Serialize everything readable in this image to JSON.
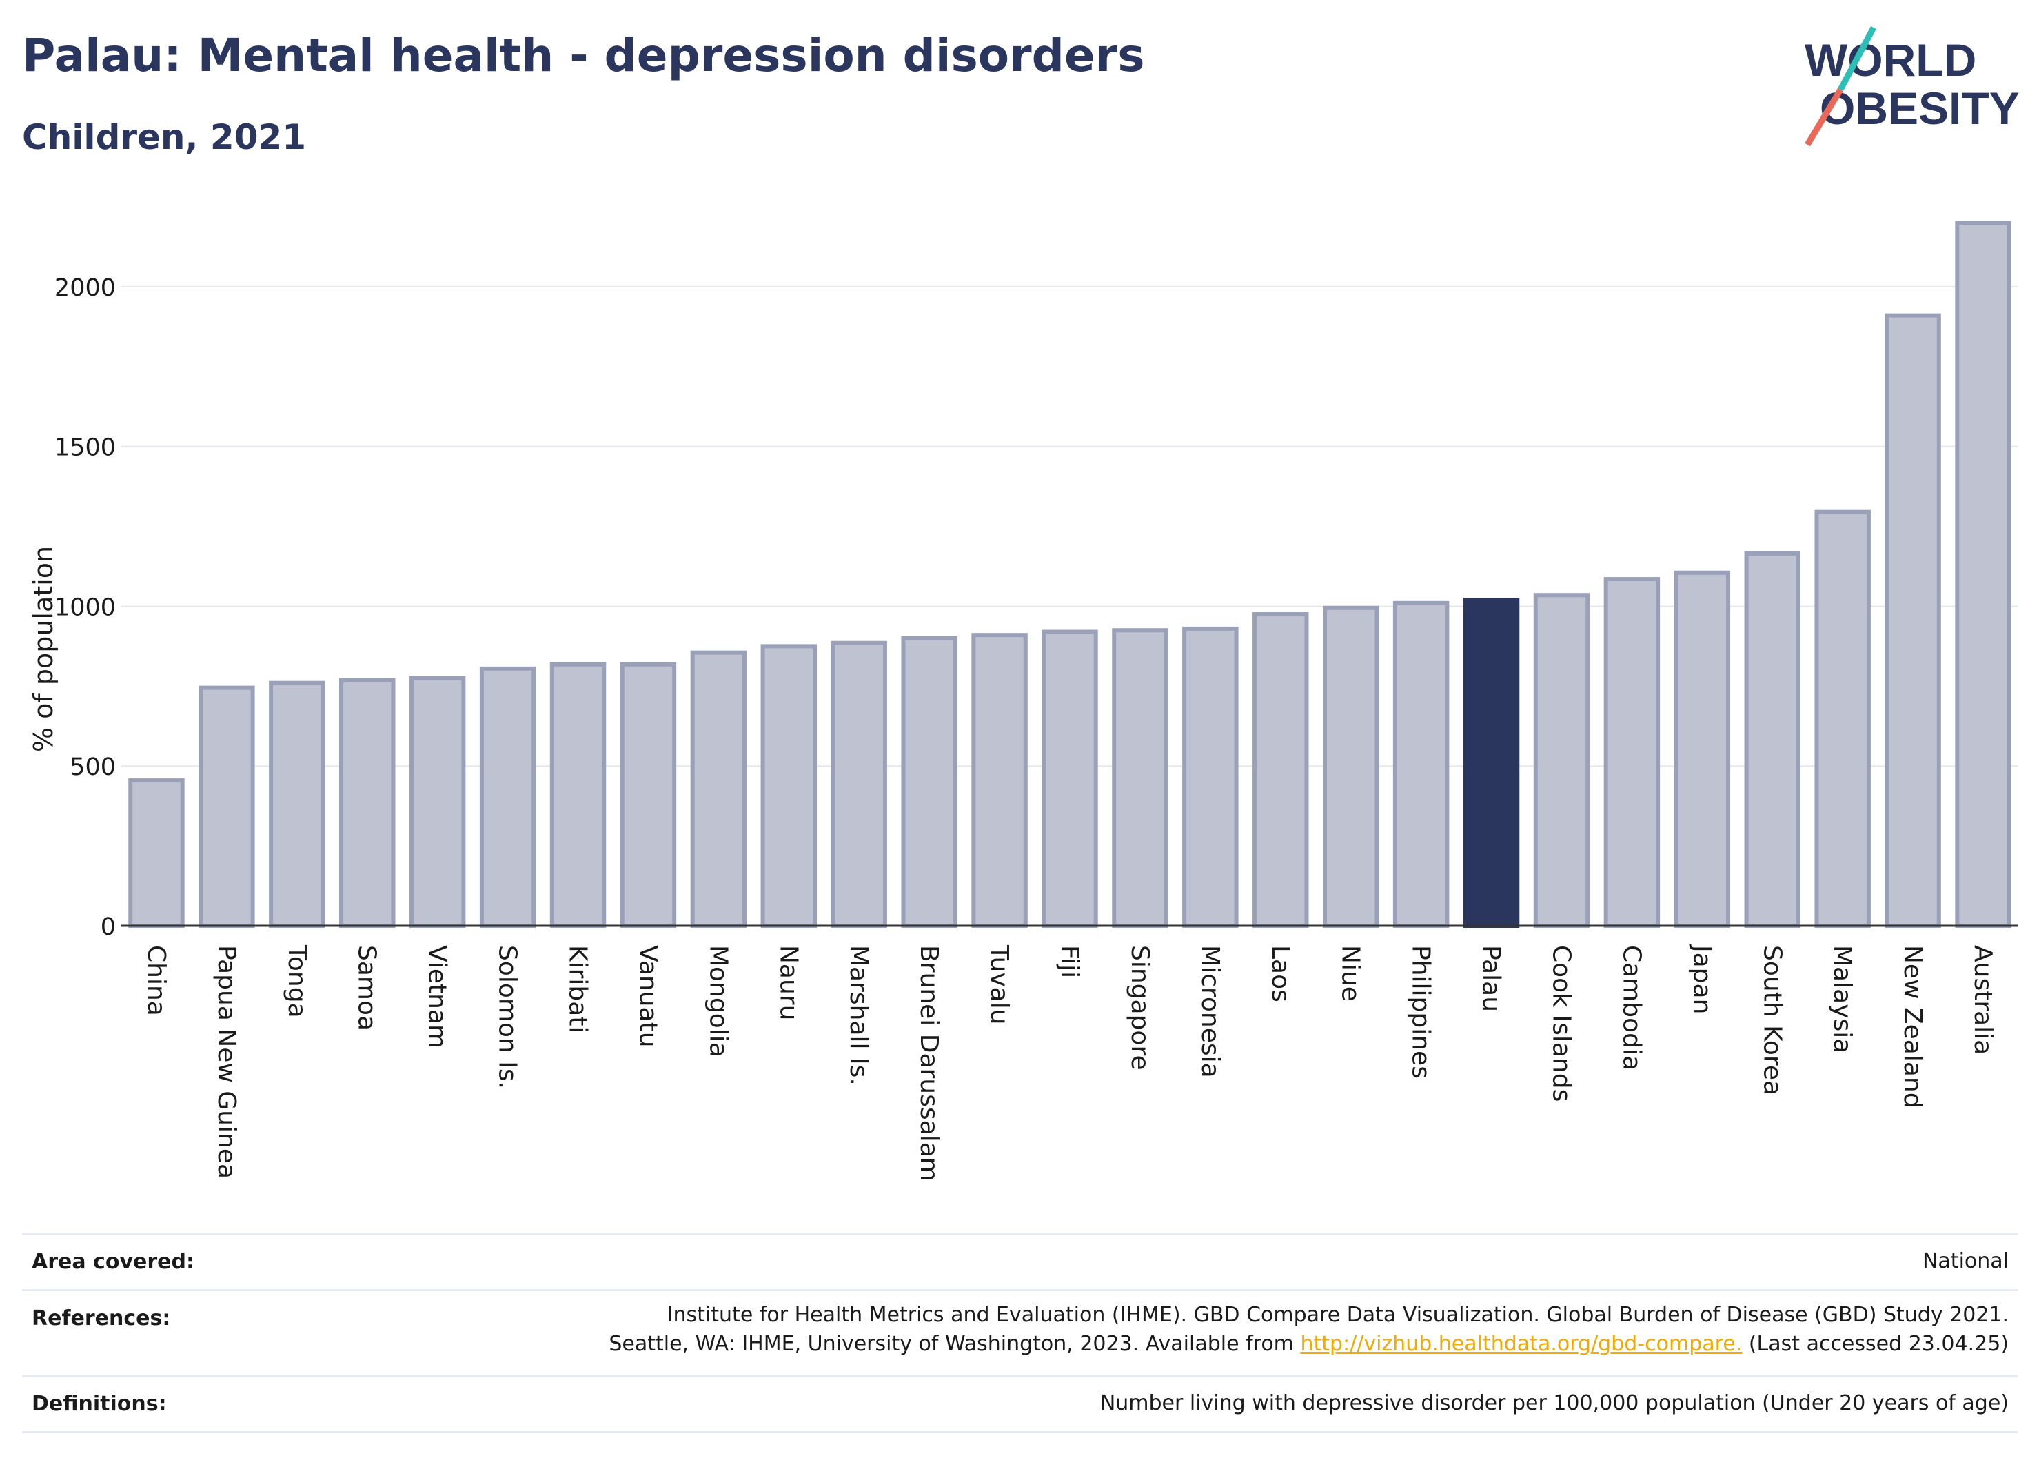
{
  "header": {
    "title": "Palau: Mental health - depression disorders",
    "subtitle": "Children, 2021"
  },
  "logo": {
    "line1": "WORLD",
    "line2": "OBESITY",
    "color_text": "#2b365e",
    "color_slash_top": "#2bbfb5",
    "color_slash_bottom": "#e8685a"
  },
  "chart_data": {
    "type": "bar",
    "ylabel": "% of population",
    "ylim": [
      0,
      2250
    ],
    "yticks": [
      0,
      500,
      1000,
      1500,
      2000
    ],
    "grid": true,
    "highlight": "Palau",
    "colors": {
      "bar": "#bfc3d1",
      "bar_edge": "#9aa0b8",
      "highlight": "#2b365e",
      "grid": "#e6e8ee"
    },
    "categories": [
      "China",
      "Papua New Guinea",
      "Tonga",
      "Samoa",
      "Vietnam",
      "Solomon Is.",
      "Kiribati",
      "Vanuatu",
      "Mongolia",
      "Nauru",
      "Marshall Is.",
      "Brunei Darussalam",
      "Tuvalu",
      "Fiji",
      "Singapore",
      "Micronesia",
      "Laos",
      "Niue",
      "Philippines",
      "Palau",
      "Cook Islands",
      "Cambodia",
      "Japan",
      "South Korea",
      "Malaysia",
      "New Zealand",
      "Australia"
    ],
    "values": [
      455,
      745,
      760,
      768,
      775,
      805,
      818,
      818,
      855,
      875,
      885,
      900,
      910,
      920,
      925,
      930,
      975,
      995,
      1010,
      1020,
      1035,
      1085,
      1105,
      1165,
      1295,
      1910,
      2200
    ]
  },
  "footer": {
    "area_label": "Area covered:",
    "area_value": "National",
    "ref_label": "References:",
    "ref_line1": "Institute for Health Metrics and Evaluation (IHME). GBD Compare Data Visualization. Global Burden of Disease (GBD) Study 2021.",
    "ref_line2_pre": "Seattle, WA: IHME, University of Washington, 2023. Available from ",
    "ref_link": "http://vizhub.healthdata.org/gbd-compare.",
    "ref_line2_post": " (Last accessed 23.04.25)",
    "def_label": "Definitions:",
    "def_value": "Number living with depressive disorder per 100,000 population (Under 20 years of age)"
  }
}
